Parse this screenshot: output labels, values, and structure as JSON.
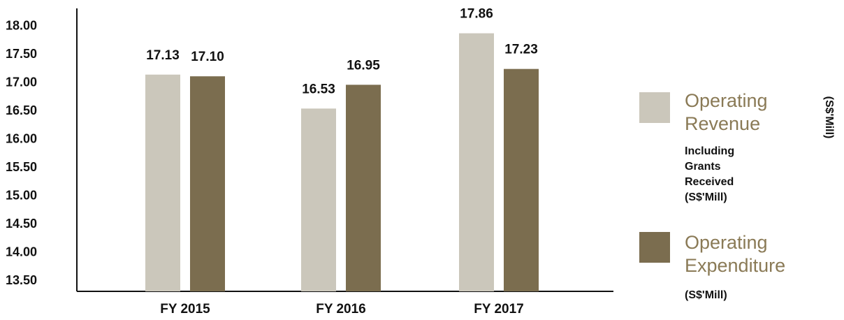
{
  "chart_data": {
    "type": "bar",
    "categories": [
      "FY 2015",
      "FY 2016",
      "FY 2017"
    ],
    "series": [
      {
        "name": "Operating Revenue",
        "values": [
          17.13,
          16.53,
          17.86
        ],
        "labels": [
          "17.13",
          "16.53",
          "17.86"
        ],
        "color": "#cbc7bb"
      },
      {
        "name": "Operating Expenditure",
        "values": [
          17.1,
          16.95,
          17.23
        ],
        "labels": [
          "17.10",
          "16.95",
          "17.23"
        ],
        "color": "#7b6d4f"
      }
    ],
    "yticks": [
      "18.00",
      "17.50",
      "17.00",
      "16.50",
      "16.00",
      "15.50",
      "15.00",
      "14.50",
      "14.00",
      "13.50"
    ],
    "ylim": [
      13.3,
      18.3
    ],
    "grid": false,
    "legend_position": "right",
    "side_unit": "(S$'Mill)"
  },
  "legend": {
    "revenue": {
      "title_line1": "Operating",
      "title_line2": "Revenue",
      "sub": [
        "Including",
        "Grants",
        "Received",
        "(S$'Mill)"
      ]
    },
    "expenditure": {
      "title_line1": "Operating",
      "title_line2": "Expenditure",
      "sub": [
        "(S$'Mill)"
      ]
    }
  }
}
